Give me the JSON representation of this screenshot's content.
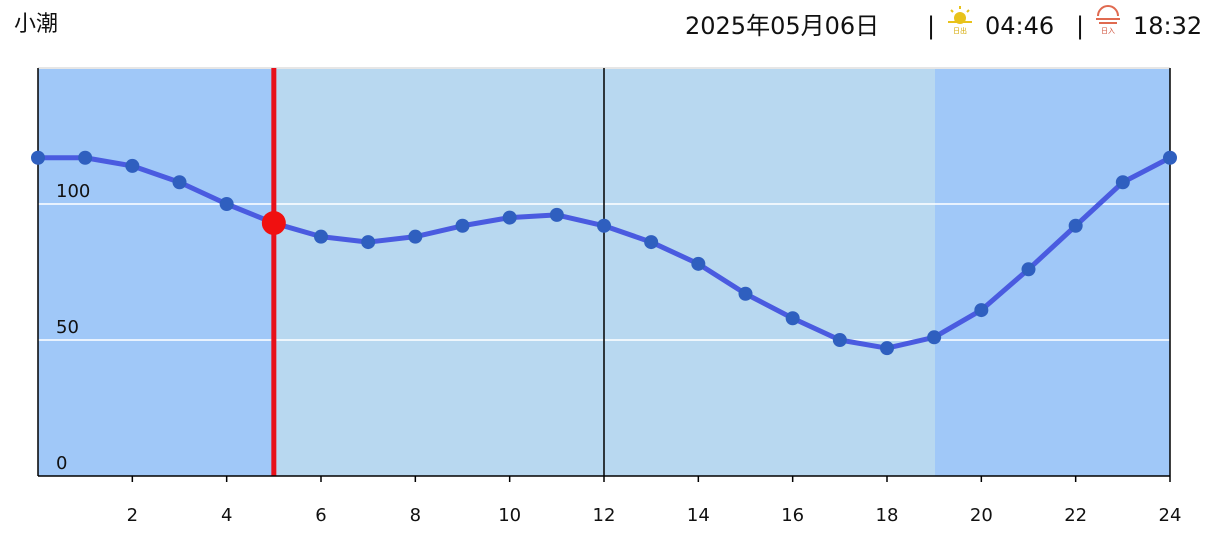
{
  "header": {
    "tide": "小潮",
    "date": "2025年05月06日",
    "separator": "|",
    "sunrise_label": "日出",
    "sunrise": "04:46",
    "sunset_label": "日入",
    "sunset": "18:32"
  },
  "chart_data": {
    "type": "line",
    "x": [
      0,
      1,
      2,
      3,
      4,
      5,
      6,
      7,
      8,
      9,
      10,
      11,
      12,
      13,
      14,
      15,
      16,
      17,
      18,
      19,
      20,
      21,
      22,
      23,
      24
    ],
    "series": [
      {
        "color": "#4a5be0",
        "values": [
          117,
          117,
          114,
          108,
          100,
          93,
          88,
          86,
          88,
          92,
          95,
          96,
          92,
          86,
          78,
          67,
          58,
          50,
          47,
          51,
          61,
          76,
          92,
          108,
          117
        ]
      }
    ],
    "xlim": [
      0,
      24
    ],
    "xticks": [
      2,
      4,
      6,
      8,
      10,
      12,
      14,
      16,
      18,
      20,
      22,
      24
    ],
    "ylim": [
      0,
      150
    ],
    "yticks": [
      0,
      50,
      100
    ],
    "grid": true
  }
}
